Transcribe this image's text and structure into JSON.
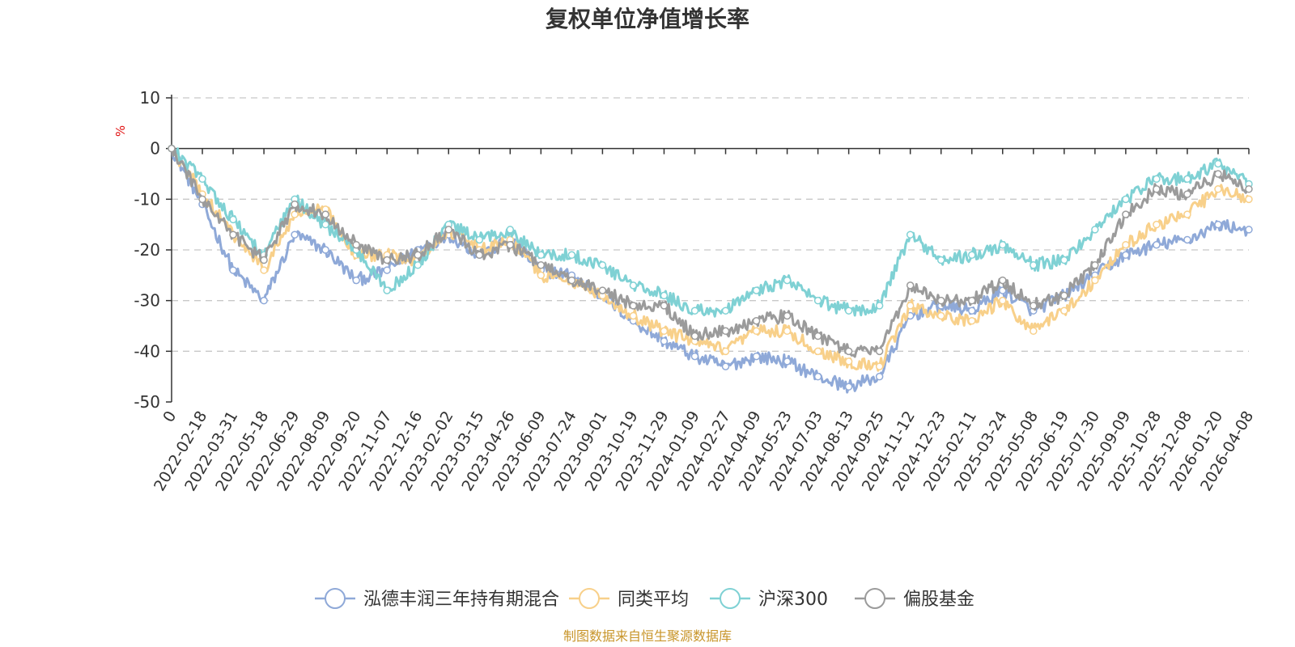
{
  "chart_data": {
    "type": "line",
    "title": "复权单位净值增长率",
    "ylabel": "%",
    "xlabel": "",
    "ylim": [
      -50,
      10
    ],
    "yticks": [
      10,
      0,
      -10,
      -20,
      -30,
      -40,
      -50
    ],
    "categories": [
      "0",
      "2022-02-18",
      "2022-03-31",
      "2022-05-18",
      "2022-06-29",
      "2022-08-09",
      "2022-09-20",
      "2022-11-07",
      "2022-12-16",
      "2023-02-02",
      "2023-03-15",
      "2023-04-26",
      "2023-06-09",
      "2023-07-24",
      "2023-09-01",
      "2023-10-19",
      "2023-11-29",
      "2024-01-09",
      "2024-02-27",
      "2024-04-09",
      "2024-05-23",
      "2024-07-03",
      "2024-08-13",
      "2024-09-25",
      "2024-11-12",
      "2024-12-23",
      "2025-02-11",
      "2025-03-24",
      "2025-05-08",
      "2025-06-19",
      "2025-07-30",
      "2025-09-09",
      "2025-10-28",
      "2025-12-08",
      "2026-01-20",
      "2026-04-08"
    ],
    "grid": "horizontal-dashed",
    "legend_position": "bottom",
    "series": [
      {
        "name": "泓德丰润三年持有期混合",
        "color": "#8fa9d8",
        "values": [
          0,
          -11,
          -24,
          -30,
          -17,
          -20,
          -26,
          -24,
          -20,
          -17,
          -21,
          -18,
          -24,
          -25,
          -29,
          -34,
          -38,
          -41,
          -43,
          -41,
          -42,
          -45,
          -47,
          -45,
          -33,
          -31,
          -32,
          -28,
          -32,
          -29,
          -25,
          -21,
          -19,
          -18,
          -15,
          -16
        ]
      },
      {
        "name": "同类平均",
        "color": "#f8d08a",
        "values": [
          0,
          -9,
          -17,
          -24,
          -13,
          -12,
          -21,
          -21,
          -22,
          -16,
          -20,
          -18,
          -25,
          -26,
          -29,
          -33,
          -36,
          -38,
          -40,
          -36,
          -36,
          -40,
          -42,
          -43,
          -31,
          -33,
          -34,
          -30,
          -36,
          -32,
          -26,
          -19,
          -15,
          -13,
          -8,
          -10
        ]
      },
      {
        "name": "沪深300",
        "color": "#7fd1d4",
        "values": [
          0,
          -6,
          -14,
          -21,
          -10,
          -15,
          -20,
          -28,
          -23,
          -15,
          -18,
          -16,
          -21,
          -21,
          -23,
          -27,
          -29,
          -32,
          -32,
          -28,
          -26,
          -30,
          -32,
          -31,
          -17,
          -22,
          -21,
          -19,
          -23,
          -22,
          -16,
          -10,
          -6,
          -6,
          -3,
          -7
        ]
      },
      {
        "name": "偏股基金",
        "color": "#9b9b9b",
        "values": [
          0,
          -10,
          -17,
          -22,
          -11,
          -13,
          -19,
          -22,
          -21,
          -16,
          -21,
          -19,
          -23,
          -26,
          -28,
          -31,
          -31,
          -37,
          -36,
          -34,
          -33,
          -37,
          -40,
          -40,
          -27,
          -30,
          -30,
          -26,
          -31,
          -29,
          -23,
          -13,
          -8,
          -9,
          -5,
          -8
        ]
      }
    ]
  },
  "source": "制图数据来自恒生聚源数据库"
}
